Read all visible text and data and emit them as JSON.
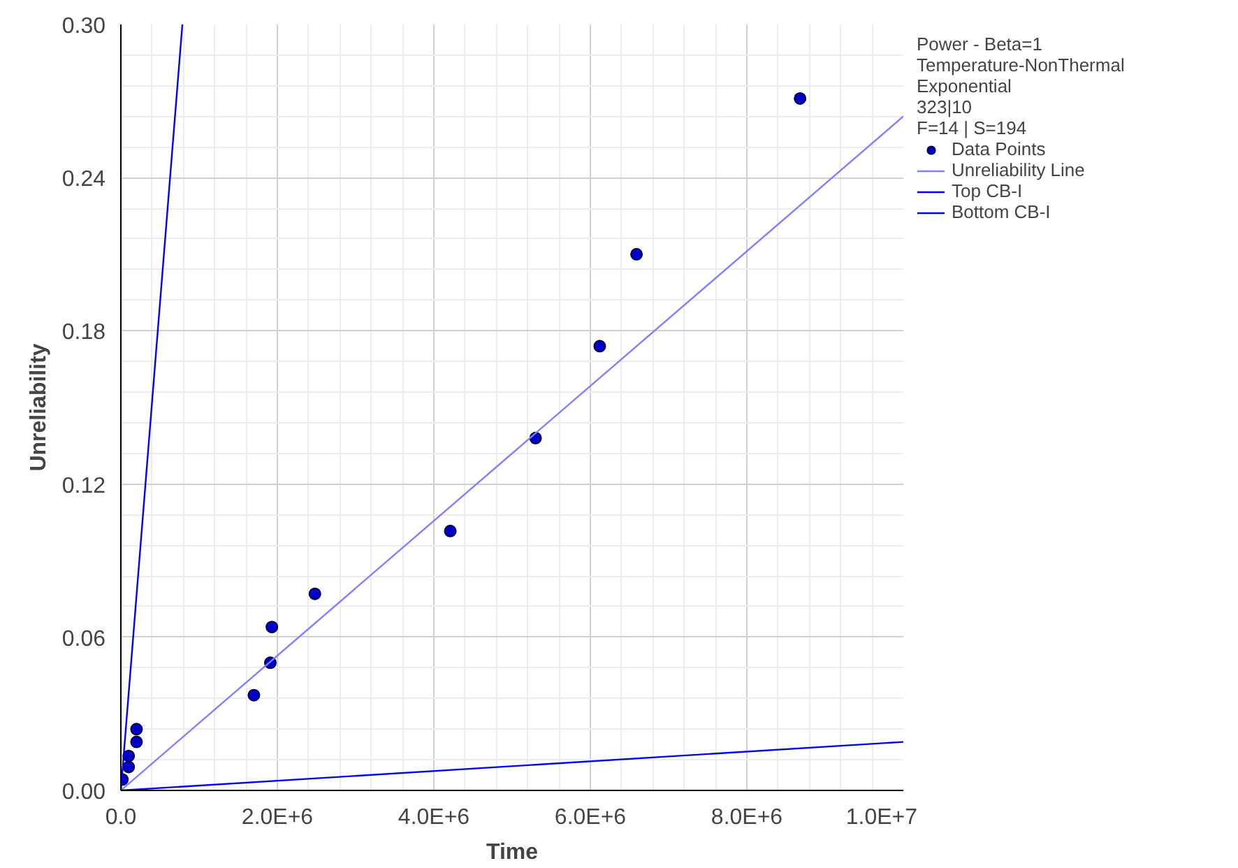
{
  "chart_data": {
    "type": "scatter",
    "xlabel": "Time",
    "ylabel": "Unreliability",
    "legend_title": "Power - Beta=1\nTemperature-NonThermal\nExponential\n323|10\nF=14 | S=194",
    "series": [
      {
        "name": "Data Points",
        "marker": "circle",
        "color": "#0000cc",
        "x": [
          20000,
          100000,
          100000,
          200000,
          200000,
          1700000,
          1910000,
          1930000,
          2480000,
          4210000,
          5300000,
          6120000,
          6590000,
          8680000
        ],
        "values": [
          0.0043,
          0.0092,
          0.0135,
          0.019,
          0.024,
          0.0373,
          0.05,
          0.064,
          0.077,
          0.1016,
          0.138,
          0.174,
          0.21,
          0.271
        ]
      },
      {
        "name": "Unreliability Line",
        "type": "line",
        "color": "#8080ff",
        "x": [
          0,
          10000000
        ],
        "values": [
          0,
          0.264
        ]
      },
      {
        "name": "Top CB-I",
        "type": "line",
        "color": "#0000ff",
        "x": [
          0,
          786000
        ],
        "values": [
          0,
          0.3
        ]
      },
      {
        "name": "Bottom CB-I",
        "type": "line",
        "color": "#0000ff",
        "x": [
          0,
          10000000
        ],
        "values": [
          0,
          0.019
        ]
      }
    ],
    "xlim": [
      0,
      10000000
    ],
    "ylim": [
      0,
      0.3
    ],
    "xticks": [
      {
        "value": 0,
        "label": "0.0"
      },
      {
        "value": 2000000,
        "label": "2.0E+6"
      },
      {
        "value": 4000000,
        "label": "4.0E+6"
      },
      {
        "value": 6000000,
        "label": "6.0E+6"
      },
      {
        "value": 8000000,
        "label": "8.0E+6"
      },
      {
        "value": 10000000,
        "label": "1.0E+7"
      }
    ],
    "yticks": [
      {
        "value": 0,
        "label": "0.00"
      },
      {
        "value": 0.06,
        "label": "0.06"
      },
      {
        "value": 0.12,
        "label": "0.12"
      },
      {
        "value": 0.18,
        "label": "0.18"
      },
      {
        "value": 0.24,
        "label": "0.24"
      },
      {
        "value": 0.3,
        "label": "0.30"
      }
    ],
    "grid": true,
    "legend": "right",
    "line_style": "solid"
  }
}
